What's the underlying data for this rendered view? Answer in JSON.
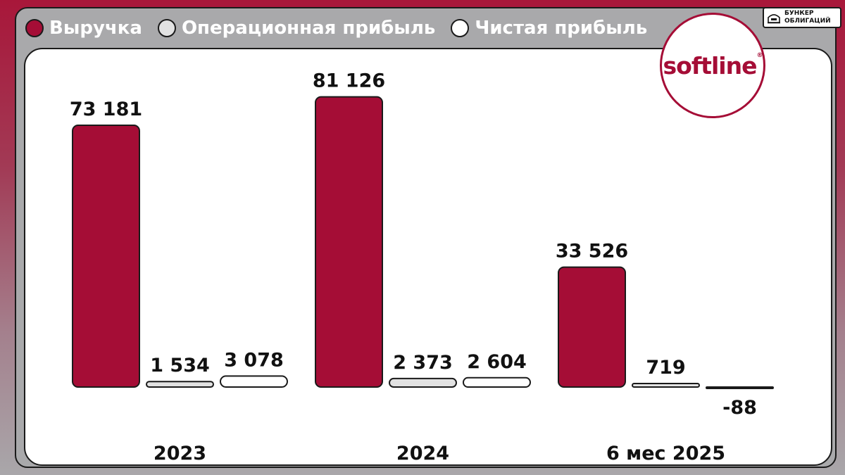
{
  "legend": [
    {
      "label": "Выручка",
      "color": "#a50d36"
    },
    {
      "label": "Операционная прибыль",
      "color": "#e2e2e2"
    },
    {
      "label": "Чистая прибыль",
      "color": "#ffffff"
    }
  ],
  "logo": {
    "text": "softline",
    "mark": "®"
  },
  "badge": {
    "line1": "БУНКЕР",
    "line2": "ОБЛИГАЦИЙ",
    "icon": "bunker-icon"
  },
  "chart_data": {
    "type": "bar",
    "categories": [
      "2023",
      "2024",
      "6 мес 2025"
    ],
    "series": [
      {
        "name": "Выручка",
        "color": "#a50d36",
        "values": [
          73181,
          81126,
          33526
        ],
        "labels": [
          "73 181",
          "81 126",
          "33 526"
        ]
      },
      {
        "name": "Операционная прибыль",
        "color": "#e2e2e2",
        "values": [
          1534,
          2373,
          719
        ],
        "labels": [
          "1 534",
          "2 373",
          "719"
        ]
      },
      {
        "name": "Чистая прибыль",
        "color": "#ffffff",
        "values": [
          3078,
          2604,
          -88
        ],
        "labels": [
          "3 078",
          "2 604",
          "-88"
        ]
      }
    ],
    "grid": false,
    "legend_position": "top-left"
  }
}
